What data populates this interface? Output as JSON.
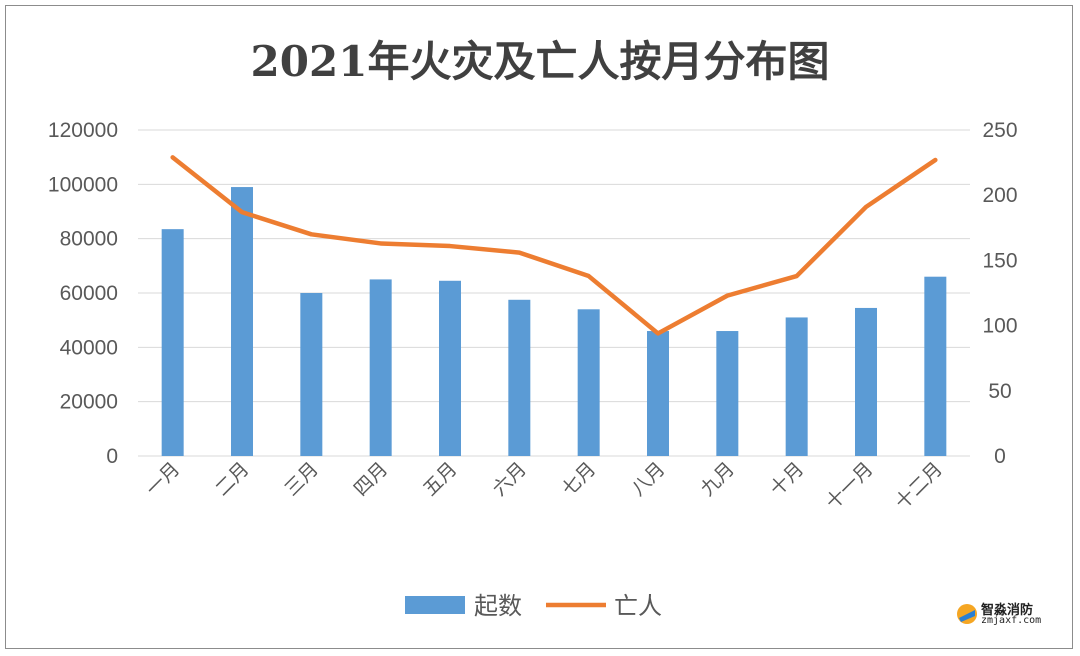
{
  "chart_data": {
    "type": "bar+line",
    "title": "2021年火灾及亡人按月分布图",
    "categories": [
      "一月",
      "二月",
      "三月",
      "四月",
      "五月",
      "六月",
      "七月",
      "八月",
      "九月",
      "十月",
      "十一月",
      "十二月"
    ],
    "series": [
      {
        "name": "起数",
        "type": "bar",
        "axis": "left",
        "color": "#5b9bd5",
        "values": [
          83500,
          99000,
          60000,
          65000,
          64500,
          57500,
          54000,
          46000,
          46000,
          51000,
          54500,
          66000
        ]
      },
      {
        "name": "亡人",
        "type": "line",
        "axis": "right",
        "color": "#ed7d31",
        "values": [
          229,
          187,
          170,
          163,
          161,
          156,
          138,
          94,
          123,
          138,
          191,
          227
        ]
      }
    ],
    "y_left": {
      "lim": [
        0,
        120000
      ],
      "ticks": [
        "0",
        "20000",
        "40000",
        "60000",
        "80000",
        "100000",
        "120000"
      ]
    },
    "y_right": {
      "lim": [
        0,
        250
      ],
      "ticks": [
        "0",
        "50",
        "100",
        "150",
        "200",
        "250"
      ]
    },
    "grid": true,
    "legend": "bottom"
  },
  "watermark": {
    "name": "智淼消防",
    "url_text": "zmjaxf.com"
  }
}
